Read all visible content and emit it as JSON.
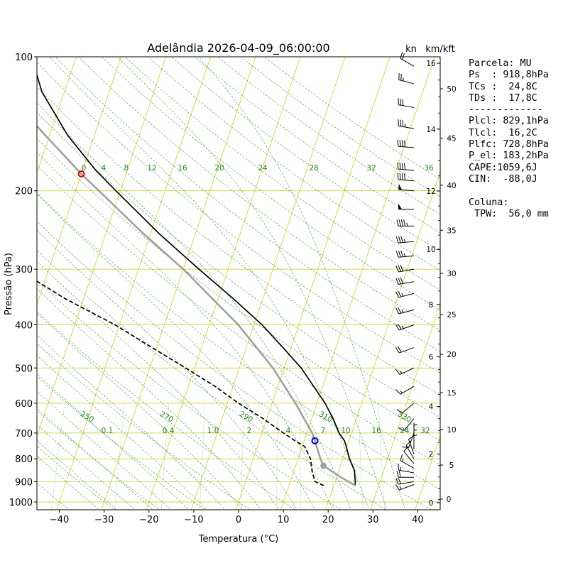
{
  "chart_data": {
    "type": "line",
    "title": "Adelândia 2026-04-09_06:00:00",
    "xlabel": "Temperatura (°C)",
    "ylabel": "Pressão (hPa)",
    "xlim": [
      -45,
      45
    ],
    "ylim": [
      1050,
      100
    ],
    "y_scale": "log",
    "x_ticks": [
      "−40",
      "−30",
      "−20",
      "−10",
      "0",
      "10",
      "20",
      "30",
      "40"
    ],
    "y_ticks": [
      "100",
      "200",
      "300",
      "400",
      "500",
      "600",
      "700",
      "800",
      "900",
      "1000"
    ],
    "unit_kn": "kn",
    "unit_kmkft": "km/kft",
    "km_ticks": [
      "0",
      "2",
      "4",
      "6",
      "8",
      "10",
      "12",
      "14",
      "16"
    ],
    "kft_ticks": [
      "5",
      "10",
      "15",
      "20",
      "25",
      "30",
      "35",
      "40",
      "45",
      "50"
    ],
    "mixing_ratio_labels_upper": [
      "0",
      "4",
      "8",
      "12",
      "16",
      "20",
      "24",
      "28",
      "32",
      "36"
    ],
    "mixing_ratio_labels_lower": [
      "0.1",
      "0.4",
      "1.0",
      "2",
      "4",
      "7",
      "10",
      "16",
      "24",
      "32"
    ],
    "theta_e_labels": [
      "250",
      "270",
      "290",
      "310",
      "330"
    ],
    "series": [
      {
        "role": "temperature",
        "color": "#000000",
        "pressure": [
          918.8,
          900,
          850,
          800,
          750,
          729,
          700,
          650,
          600,
          550,
          500,
          450,
          400,
          350,
          300,
          250,
          200,
          180,
          150,
          120,
          100
        ],
        "temperature": [
          24.8,
          24.5,
          23.5,
          21.5,
          19.8,
          19.0,
          17.2,
          14.8,
          11.8,
          8.0,
          3.8,
          -1.8,
          -8.2,
          -16.5,
          -26.5,
          -38.0,
          -51.0,
          -57.0,
          -66.0,
          -75.0,
          -80.0
        ]
      },
      {
        "role": "dewpoint",
        "color": "#000000",
        "dash": true,
        "pressure": [
          918.8,
          900,
          850,
          800,
          750,
          729,
          700,
          650,
          600,
          550,
          500,
          450,
          400,
          350,
          300,
          270,
          240,
          220,
          200,
          180,
          150,
          120,
          100
        ],
        "temperature": [
          17.8,
          15.5,
          14.0,
          12.8,
          10.5,
          8.0,
          4.8,
          -0.8,
          -7.5,
          -14.0,
          -22.0,
          -31.0,
          -41.0,
          -54.0,
          -67.0,
          -69.0,
          -75.0,
          -86.0,
          -89.0,
          -94.0,
          -103.0,
          -112.0,
          -116.0
        ]
      },
      {
        "role": "parcel",
        "color": "#a0a0a0",
        "pressure": [
          918.8,
          880,
          829.1,
          800,
          728.8,
          700,
          600,
          500,
          400,
          300,
          250,
          183.2,
          150,
          120,
          100
        ],
        "temperature": [
          24.8,
          21.0,
          16.2,
          15.0,
          12.4,
          11.2,
          5.2,
          -2.5,
          -13.5,
          -30.0,
          -41.5,
          -60.0,
          -71.0,
          -83.0,
          -92.0
        ]
      }
    ],
    "markers": [
      {
        "label": "LCL",
        "pressure": 829.1,
        "temperature": 16.2,
        "color": "#a0a0a0"
      },
      {
        "label": "LFC",
        "pressure": 728.8,
        "temperature": 12.4,
        "color": "#0000cc"
      },
      {
        "label": "EL",
        "pressure": 183.2,
        "temperature": -60.0,
        "color": "#e00000"
      }
    ],
    "wind_barbs": {
      "pressure": [
        914,
        900,
        880,
        860,
        840,
        820,
        800,
        780,
        760,
        740,
        720,
        700,
        650,
        600,
        550,
        500,
        450,
        400,
        370,
        340,
        320,
        300,
        280,
        260,
        240,
        220,
        200,
        190,
        180,
        160,
        145,
        130,
        115,
        105
      ],
      "speed_kn": [
        15,
        20,
        20,
        15,
        15,
        10,
        10,
        10,
        5,
        5,
        5,
        10,
        10,
        10,
        15,
        15,
        20,
        25,
        25,
        25,
        30,
        30,
        35,
        35,
        45,
        50,
        50,
        40,
        40,
        40,
        35,
        30,
        25,
        20
      ],
      "direction_deg": [
        250,
        260,
        270,
        280,
        300,
        320,
        330,
        340,
        0,
        0,
        0,
        200,
        220,
        230,
        240,
        245,
        250,
        250,
        255,
        255,
        260,
        260,
        265,
        265,
        270,
        270,
        275,
        275,
        275,
        275,
        280,
        280,
        285,
        300
      ]
    }
  },
  "panel": {
    "text": "Parcela: MU\nPs  : 918,8hPa\nTCs :  24,8C\nTDs :  17,8C\n-------------\nPlcl: 829,1hPa\nTlcl:  16,2C\nPlfc: 728,8hPa\nP_el: 183,2hPa\nCAPE:1059,6J\nCIN:  -88,0J\n\nColuna:\n TPW:  56,0 mm"
  }
}
